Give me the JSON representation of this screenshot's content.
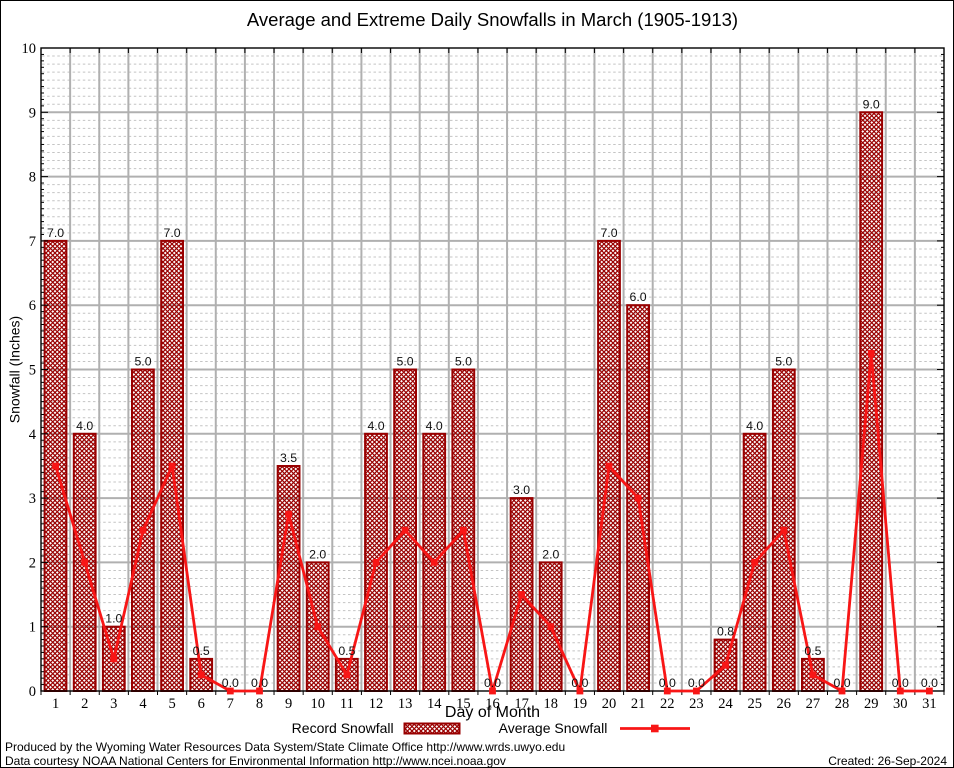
{
  "chart_data": {
    "type": "bar",
    "title": "Average and Extreme Daily Snowfalls in March (1905-1913)",
    "xlabel": "Day of Month",
    "ylabel": "Snowfall (Inches)",
    "x": [
      1,
      2,
      3,
      4,
      5,
      6,
      7,
      8,
      9,
      10,
      11,
      12,
      13,
      14,
      15,
      16,
      17,
      18,
      19,
      20,
      21,
      22,
      23,
      24,
      25,
      26,
      27,
      28,
      29,
      30,
      31
    ],
    "series": [
      {
        "name": "Record Snowfall",
        "type": "bar",
        "values": [
          7.0,
          4.0,
          1.0,
          5.0,
          7.0,
          0.5,
          0.0,
          0.0,
          3.5,
          2.0,
          0.5,
          4.0,
          5.0,
          4.0,
          5.0,
          0.0,
          3.0,
          2.0,
          0.0,
          7.0,
          6.0,
          0.0,
          0.0,
          0.8,
          4.0,
          5.0,
          0.5,
          0.0,
          9.0,
          0.0,
          0.0
        ]
      },
      {
        "name": "Average Snowfall",
        "type": "line",
        "values": [
          3.5,
          2.0,
          0.5,
          2.5,
          3.5,
          0.25,
          0.0,
          0.0,
          2.75,
          1.0,
          0.25,
          2.0,
          2.5,
          2.0,
          2.5,
          0.0,
          1.5,
          1.0,
          0.0,
          3.5,
          3.0,
          0.0,
          0.0,
          0.4,
          2.0,
          2.5,
          0.25,
          0.0,
          5.25,
          0.0,
          0.0
        ]
      }
    ],
    "bar_labels": [
      "7.0",
      "4.0",
      "1.0",
      "5.0",
      "7.0",
      "0.5",
      "0.0",
      "0.0",
      "3.5",
      "2.0",
      "0.5",
      "4.0",
      "5.0",
      "4.0",
      "5.0",
      "0.0",
      "3.0",
      "2.0",
      "0.0",
      "7.0",
      "6.0",
      "0.0",
      "0.0",
      "0.8",
      "4.0",
      "5.0",
      "0.5",
      "0.0",
      "9.0",
      "0.0",
      "0.0"
    ],
    "ylim": [
      0,
      10
    ],
    "yticks": [
      0,
      1,
      2,
      3,
      4,
      5,
      6,
      7,
      8,
      9,
      10
    ],
    "grid": {
      "major": "solid",
      "minor": "dashed horizontal every 0.125",
      "on": true
    },
    "legend_position": "bottom",
    "colors": {
      "bar": "#990000",
      "line": "#f81616",
      "grid_major": "#b0b0b0",
      "grid_minor": "#c4c4c4",
      "text": "#000000"
    }
  },
  "footer": {
    "line1": "Produced by the Wyoming Water Resources Data System/State Climate Office http://www.wrds.uwyo.edu",
    "line2": "Data courtesy NOAA National Centers for Environmental Information http://www.ncei.noaa.gov",
    "created": "Created: 26-Sep-2024"
  }
}
